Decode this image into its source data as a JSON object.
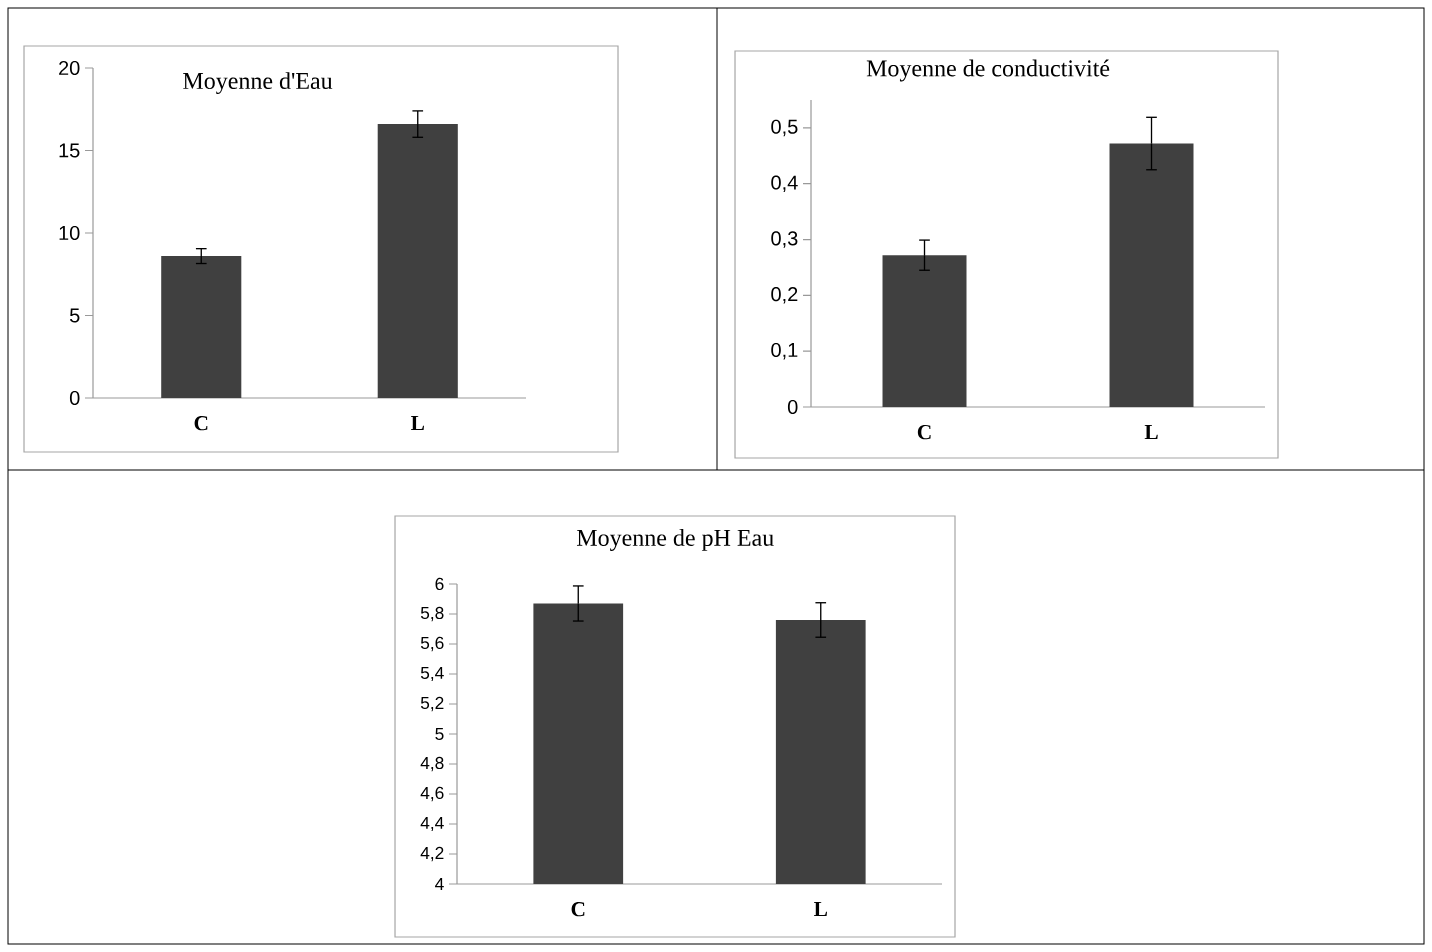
{
  "chart_data": [
    {
      "type": "bar",
      "title": "Moyenne d'Eau",
      "categories": [
        "C",
        "L"
      ],
      "values": [
        8.6,
        16.6
      ],
      "errors": [
        0.45,
        0.8
      ],
      "color": "#404040",
      "ylim": [
        0,
        20
      ],
      "yticks": [
        0,
        5,
        10,
        15,
        20
      ]
    },
    {
      "type": "bar",
      "title": "Moyenne de conductivité",
      "categories": [
        "C",
        "L"
      ],
      "values": [
        0.272,
        0.472
      ],
      "errors": [
        0.027,
        0.047
      ],
      "color": "#404040",
      "ylim": [
        0,
        0.55
      ],
      "yticks": [
        {
          "value": 0,
          "label": "0"
        },
        {
          "value": 0.1,
          "label": "0,1"
        },
        {
          "value": 0.2,
          "label": "0,2"
        },
        {
          "value": 0.3,
          "label": "0,3"
        },
        {
          "value": 0.4,
          "label": "0,4"
        },
        {
          "value": 0.5,
          "label": "0,5"
        }
      ]
    },
    {
      "type": "bar",
      "title": "Moyenne de pH  Eau",
      "categories": [
        "C",
        "L"
      ],
      "values": [
        5.87,
        5.76
      ],
      "errors": [
        0.117,
        0.115
      ],
      "color": "#404040",
      "ylim": [
        4,
        6
      ],
      "yticks": [
        {
          "value": 4,
          "label": "4"
        },
        {
          "value": 4.2,
          "label": "4,2"
        },
        {
          "value": 4.4,
          "label": "4,4"
        },
        {
          "value": 4.6,
          "label": "4,6"
        },
        {
          "value": 4.8,
          "label": "4,8"
        },
        {
          "value": 5,
          "label": "5"
        },
        {
          "value": 5.2,
          "label": "5,2"
        },
        {
          "value": 5.4,
          "label": "5,4"
        },
        {
          "value": 5.6,
          "label": "5,6"
        },
        {
          "value": 5.8,
          "label": "5,8"
        },
        {
          "value": 6,
          "label": "6"
        }
      ]
    }
  ]
}
